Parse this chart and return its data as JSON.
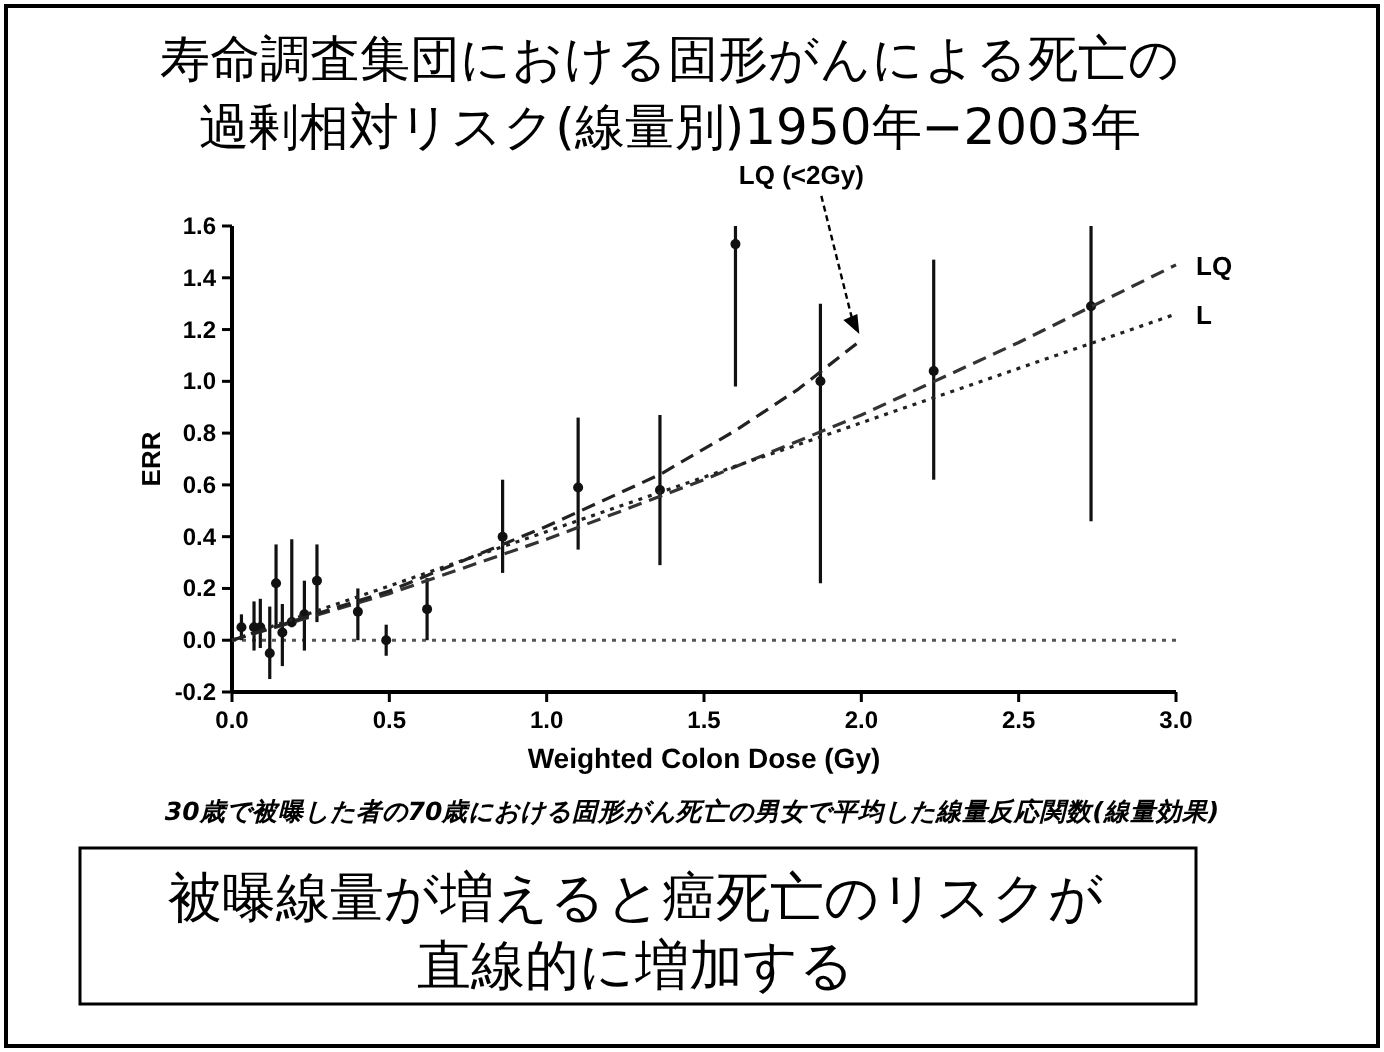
{
  "chart_data": {
    "type": "scatter",
    "title": "寿命調査集団における固形がんによる死亡の",
    "subtitle": "過剰相対リスク(線量別)1950年−2003年",
    "xlabel": "Weighted Colon Dose (Gy)",
    "ylabel": "ERR",
    "annotations": [
      "30歳で被曝した者の70歳における固形がん死亡の男女で平均した線量反応関数(線量効果)",
      "被曝線量が増えると癌死亡のリスクが",
      "直線的に増加する"
    ],
    "xlim": [
      0,
      3
    ],
    "ylim": [
      -0.2,
      1.6
    ],
    "xticks": [
      {
        "value": 0,
        "label": "0.0"
      },
      {
        "value": 0.5,
        "label": "0.5"
      },
      {
        "value": 1,
        "label": "1.0"
      },
      {
        "value": 1.5,
        "label": "1.5"
      },
      {
        "value": 2,
        "label": "2.0"
      },
      {
        "value": 2.5,
        "label": "2.5"
      },
      {
        "value": 3,
        "label": "3.0"
      }
    ],
    "yticks": [
      {
        "value": -0.2,
        "label": "-0.2"
      },
      {
        "value": 0,
        "label": "0.0"
      },
      {
        "value": 0.2,
        "label": "0.2"
      },
      {
        "value": 0.4,
        "label": "0.4"
      },
      {
        "value": 0.6,
        "label": "0.6"
      },
      {
        "value": 0.8,
        "label": "0.8"
      },
      {
        "value": 1,
        "label": "1.0"
      },
      {
        "value": 1.2,
        "label": "1.2"
      },
      {
        "value": 1.4,
        "label": "1.4"
      },
      {
        "value": 1.6,
        "label": "1.6"
      }
    ],
    "ref_lines": [
      {
        "axis": "y",
        "value": 0,
        "color": "#555555",
        "line_style": "dotted"
      }
    ],
    "series": [
      {
        "type": "scatter",
        "marker": "circle",
        "color": "#111111",
        "x": [
          0.03,
          0.07,
          0.09,
          0.12,
          0.14,
          0.16,
          0.19,
          0.23,
          0.27,
          0.4,
          0.49,
          0.62,
          0.86,
          1.1,
          1.36,
          1.6,
          1.87,
          2.23,
          2.73
        ],
        "values": [
          0.05,
          0.05,
          0.05,
          -0.05,
          0.22,
          0.03,
          0.07,
          0.1,
          0.23,
          0.11,
          0.0,
          0.12,
          0.4,
          0.59,
          0.58,
          1.53,
          1.0,
          1.04,
          1.29
        ],
        "errors": [
          [
            0.0,
            0.1
          ],
          [
            -0.04,
            0.15
          ],
          [
            -0.03,
            0.16
          ],
          [
            -0.15,
            0.13
          ],
          [
            0.05,
            0.37
          ],
          [
            -0.1,
            0.14
          ],
          [
            0.05,
            0.39
          ],
          [
            -0.04,
            0.23
          ],
          [
            0.07,
            0.37
          ],
          [
            0.0,
            0.2
          ],
          [
            -0.06,
            0.06
          ],
          [
            0.0,
            0.24
          ],
          [
            0.26,
            0.62
          ],
          [
            0.35,
            0.86
          ],
          [
            0.29,
            0.87
          ],
          [
            0.98,
            1.6
          ],
          [
            0.22,
            1.3
          ],
          [
            0.62,
            1.47
          ],
          [
            0.46,
            1.6
          ]
        ]
      },
      {
        "type": "line",
        "name": "LQ",
        "color": "#333333",
        "line_style": "dashed",
        "marker": "none",
        "x": [
          0,
          0.5,
          1,
          1.5,
          2,
          2.5,
          3
        ],
        "values": [
          0,
          0.18,
          0.39,
          0.62,
          0.87,
          1.15,
          1.45
        ]
      },
      {
        "type": "line",
        "name": "L",
        "color": "#222222",
        "line_style": "dotted",
        "marker": "none",
        "x": [
          0,
          3
        ],
        "values": [
          0,
          1.26
        ]
      },
      {
        "type": "line",
        "name": "LQ (<2Gy)",
        "color": "#222222",
        "line_style": "dashed",
        "marker": "none",
        "x": [
          0,
          0.5,
          1,
          1.36,
          1.6,
          1.8,
          2
        ],
        "values": [
          0,
          0.19,
          0.44,
          0.64,
          0.81,
          0.97,
          1.16
        ]
      }
    ]
  }
}
